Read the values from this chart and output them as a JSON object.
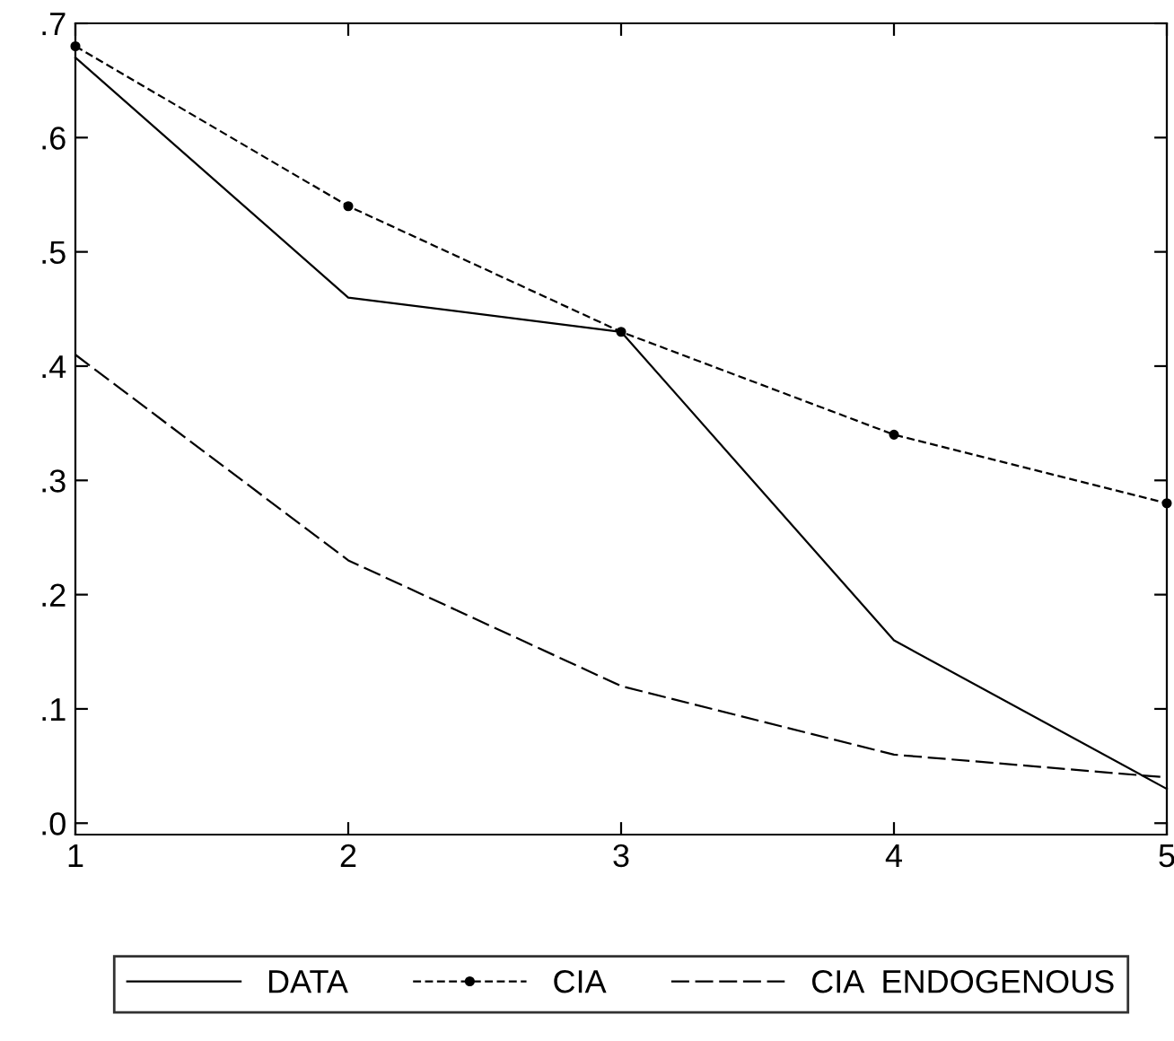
{
  "chart_data": {
    "type": "line",
    "x": [
      1,
      2,
      3,
      4,
      5
    ],
    "xlim": [
      1,
      5
    ],
    "xticks": [
      1,
      2,
      3,
      4,
      5
    ],
    "ylim": [
      -0.01,
      0.7
    ],
    "yticks": [
      {
        "value": 0,
        "label": ".0"
      },
      {
        "value": 0.1,
        "label": ".1"
      },
      {
        "value": 0.2,
        "label": ".2"
      },
      {
        "value": 0.3,
        "label": ".3"
      },
      {
        "value": 0.4,
        "label": ".4"
      },
      {
        "value": 0.5,
        "label": ".5"
      },
      {
        "value": 0.6,
        "label": ".6"
      },
      {
        "value": 0.7,
        "label": ".7"
      }
    ],
    "grid": false,
    "legend": "bottom",
    "series": [
      {
        "name": "DATA",
        "color": "#000000",
        "line_style": "solid",
        "marker": "none",
        "values": [
          0.67,
          0.46,
          0.43,
          0.16,
          0.03
        ]
      },
      {
        "name": "CIA",
        "color": "#000000",
        "line_style": "dashed",
        "marker": "circle",
        "values": [
          0.68,
          0.54,
          0.43,
          0.34,
          0.28
        ]
      },
      {
        "name": "CIA  ENDOGENOUS",
        "color": "#000000",
        "line_style": "longdash",
        "marker": "none",
        "values": [
          0.41,
          0.23,
          0.12,
          0.06,
          0.04
        ]
      }
    ]
  }
}
